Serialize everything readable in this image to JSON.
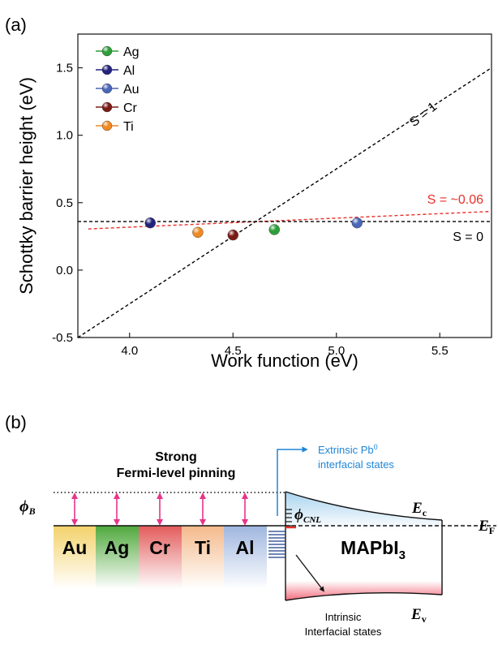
{
  "panel_a_label": "(a)",
  "panel_b_label": "(b)",
  "chart_data": {
    "type": "scatter",
    "xlabel": "Work function (eV)",
    "ylabel": "Schottky barrier height (eV)",
    "xlim": [
      3.75,
      5.75
    ],
    "ylim": [
      -0.5,
      1.75
    ],
    "xticks": [
      "4.0",
      "4.5",
      "5.0",
      "5.5"
    ],
    "xtick_values": [
      4.0,
      4.5,
      5.0,
      5.5
    ],
    "yticks": [
      "-0.5",
      "0.0",
      "0.5",
      "1.0",
      "1.5"
    ],
    "ytick_values": [
      -0.5,
      0.0,
      0.5,
      1.0,
      1.5
    ],
    "legend_position": "top-left",
    "series": [
      {
        "name": "Ag",
        "color": "#2e9e3a",
        "x": [
          4.7
        ],
        "y": [
          0.3
        ]
      },
      {
        "name": "Al",
        "color": "#23237e",
        "x": [
          4.1
        ],
        "y": [
          0.35
        ]
      },
      {
        "name": "Au",
        "color": "#4a67b8",
        "x": [
          5.1
        ],
        "y": [
          0.35
        ]
      },
      {
        "name": "Cr",
        "color": "#7a1c16",
        "x": [
          4.5
        ],
        "y": [
          0.26
        ]
      },
      {
        "name": "Ti",
        "color": "#ef8a22",
        "x": [
          4.33
        ],
        "y": [
          0.28
        ]
      }
    ],
    "lines": [
      {
        "label": "S = 1",
        "color": "#000000",
        "style": "dashed",
        "x": [
          3.75,
          5.75
        ],
        "y": [
          -0.5,
          1.5
        ]
      },
      {
        "label": "S = ~0.06",
        "color": "#e8302a",
        "style": "dashed",
        "x": [
          3.8,
          5.75
        ],
        "y": [
          0.305,
          0.435
        ]
      },
      {
        "label": "S = 0",
        "color": "#000000",
        "style": "dashed",
        "x": [
          3.75,
          5.75
        ],
        "y": [
          0.36,
          0.36
        ]
      }
    ]
  },
  "diagram": {
    "title_line1": "Strong",
    "title_line2": "Fermi-level pinning",
    "phi_b": "ϕ",
    "phi_b_sub": "B",
    "phi_cnl": "ϕ",
    "phi_cnl_sub": "CNL",
    "metals": [
      {
        "name": "Au",
        "color": "#f3d26b"
      },
      {
        "name": "Ag",
        "color": "#4fa83c"
      },
      {
        "name": "Cr",
        "color": "#e35b5b"
      },
      {
        "name": "Ti",
        "color": "#f4b98a"
      },
      {
        "name": "Al",
        "color": "#9fb6df"
      }
    ],
    "semiconductor": "MAPbI",
    "semiconductor_sub": "3",
    "ec": "E",
    "ec_sub": "c",
    "ef": "E",
    "ef_sub": "F",
    "ev": "E",
    "ev_sub": "v",
    "extrinsic_line1_main": "Extrinsic Pb",
    "extrinsic_line1_sup": "0",
    "extrinsic_line2": "interfacial states",
    "intrinsic_line1": "Intrinsic",
    "intrinsic_line2": "Interfacial states",
    "colors": {
      "arrow": "#e8348a",
      "blue_text": "#1f86d6",
      "cnl_line": "#e8302a",
      "states": "#1a3e8a"
    }
  }
}
